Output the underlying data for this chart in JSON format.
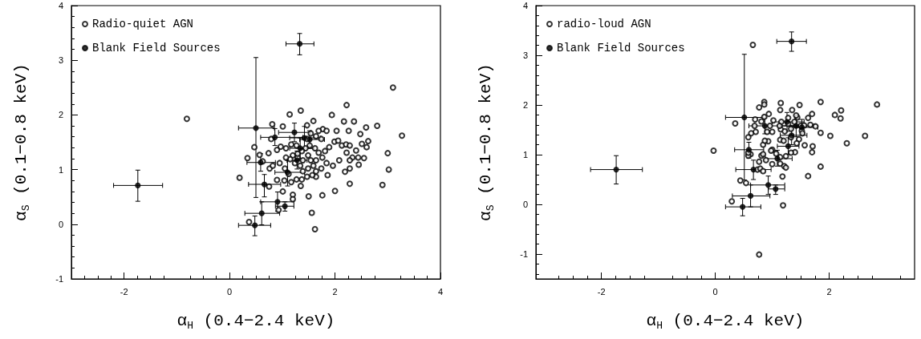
{
  "chart_data": [
    {
      "type": "scatter",
      "xlabel": "α$_{H}$ (0.4−2.4 keV)",
      "ylabel": "α$_{S}$ (0.1−0.8 keV)",
      "xlim": [
        -3,
        4
      ],
      "ylim": [
        -1,
        4
      ],
      "xticks": [
        -2,
        0,
        2,
        4
      ],
      "yticks": [
        -1,
        0,
        1,
        2,
        3,
        4
      ],
      "legend": "top left",
      "grid": false,
      "marker": "circle",
      "series": [
        {
          "name": "Radio-quiet AGN",
          "color": "#000000",
          "x": [
            -0.81,
            3.1,
            3.27,
            3.0,
            3.02,
            2.9,
            2.8,
            2.22,
            0.19,
            0.37,
            1.56,
            1.62,
            1.5,
            1.76,
            2.0,
            2.28,
            1.14,
            1.35,
            1.94,
            2.36,
            2.59,
            2.63,
            2.6,
            2.55,
            2.45,
            2.28,
            2.19,
            0.47,
            0.34,
            0.81,
            1.01,
            0.79,
            0.57,
            0.63,
            0.74,
            0.76,
            0.82,
            0.9,
            1.04,
            1.01,
            1.2,
            1.2,
            0.93,
            0.75,
            1.35,
            1.47,
            1.59,
            1.77,
            1.84,
            2.03,
            2.17,
            2.26,
            2.48,
            2.51,
            2.4,
            2.33,
            2.22,
            2.13,
            2.21,
            2.28,
            1.99,
            2.06,
            1.89,
            1.81,
            1.76,
            1.84,
            1.96,
            2.08,
            1.74,
            1.64,
            1.57,
            1.47,
            1.37,
            1.27,
            1.17,
            1.12,
            1.05,
            0.95,
            0.9,
            0.97,
            1.07,
            1.17,
            1.27,
            1.2,
            1.29,
            1.39,
            1.34,
            1.24,
            1.15,
            1.07,
            1.49,
            1.54,
            1.59,
            1.64,
            1.69,
            1.62,
            1.52,
            1.44,
            1.37,
            1.29,
            1.47,
            1.64,
            1.74,
            1.69,
            1.54,
            1.39,
            1.49,
            1.64,
            1.86,
            2.28,
            2.44
          ],
          "values": [
            1.93,
            2.5,
            1.62,
            1.3,
            1.0,
            0.72,
            1.8,
            2.18,
            0.85,
            0.04,
            0.21,
            -0.09,
            0.51,
            0.53,
            0.61,
            0.74,
            2.01,
            2.08,
            2.0,
            1.88,
            1.77,
            1.52,
            1.41,
            1.21,
            1.09,
            1.02,
            0.96,
            1.41,
            1.21,
            1.83,
            1.79,
            1.56,
            1.27,
            1.15,
            1.3,
            1.02,
            1.07,
            0.81,
            0.8,
            0.6,
            0.54,
            0.46,
            0.26,
            0.69,
            0.7,
            1.81,
            1.89,
            1.74,
            1.71,
            1.71,
            1.88,
            1.71,
            1.65,
            1.47,
            1.35,
            1.22,
            1.31,
            1.44,
            1.46,
            1.44,
            1.51,
            1.53,
            1.41,
            1.34,
            1.22,
            1.12,
            1.07,
            1.17,
            1.02,
            0.87,
            0.9,
            0.87,
            0.82,
            0.82,
            0.77,
            0.92,
            1.02,
            1.12,
            1.36,
            1.42,
            1.39,
            1.46,
            1.44,
            1.26,
            1.22,
            1.17,
            1.07,
            1.12,
            1.19,
            1.22,
            1.26,
            1.17,
            1.07,
            1.17,
            1.31,
            1.39,
            1.44,
            1.39,
            1.34,
            1.29,
            1.56,
            1.61,
            1.56,
            1.71,
            1.66,
            0.97,
            1.02,
            0.97,
            0.9,
            1.17,
            1.22
          ]
        },
        {
          "name": "Blank Field Sources",
          "color": "#000000",
          "x": [
            -1.74,
            1.33,
            0.5,
            0.59,
            0.66,
            0.91,
            1.05,
            0.61,
            0.48,
            0.86,
            1.1,
            1.23,
            1.28,
            1.34,
            1.42,
            1.52
          ],
          "values": [
            0.71,
            3.3,
            1.76,
            1.13,
            0.73,
            0.41,
            0.33,
            0.2,
            -0.02,
            1.59,
            0.95,
            1.68,
            1.17,
            1.39,
            1.58,
            1.55
          ],
          "errors": [
            [
              0.42,
              0.99
            ],
            [
              3.1,
              3.49
            ],
            [
              0.49,
              3.05
            ],
            [
              0.97,
              1.29
            ],
            [
              0.5,
              0.91
            ],
            [
              0.24,
              0.59
            ],
            [
              0.24,
              0.41
            ],
            [
              -0.01,
              0.41
            ],
            [
              -0.21,
              0.15
            ],
            [
              1.44,
              1.75
            ],
            [
              0.7,
              1.17
            ],
            [
              1.51,
              1.85
            ],
            [
              1.01,
              1.34
            ],
            [
              1.2,
              1.58
            ],
            [
              1.36,
              1.79
            ],
            [
              1.39,
              1.71
            ]
          ],
          "xerrors": [
            [
              -2.2,
              -1.27
            ],
            [
              1.07,
              1.6
            ],
            [
              0.17,
              0.85
            ],
            [
              0.33,
              0.87
            ],
            [
              0.36,
              0.97
            ],
            [
              0.59,
              1.22
            ],
            [
              0.87,
              1.22
            ],
            [
              0.29,
              0.95
            ],
            [
              0.17,
              0.78
            ],
            [
              0.59,
              1.39
            ],
            [
              0.86,
              1.42
            ],
            [
              0.93,
              1.54
            ],
            [
              1.09,
              1.47
            ],
            [
              1.14,
              1.61
            ],
            [
              1.14,
              1.73
            ],
            [
              1.33,
              1.8
            ]
          ]
        }
      ]
    },
    {
      "type": "scatter",
      "xlabel": "α$_{H}$ (0.4−2.4 keV)",
      "ylabel": "α$_{S}$ (0.1−0.8 keV)",
      "xlim": [
        -3.15,
        3.5
      ],
      "ylim": [
        -1.5,
        4
      ],
      "xticks": [
        -2,
        0,
        2
      ],
      "yticks": [
        -1,
        0,
        1,
        2,
        3,
        4
      ],
      "legend": "top left",
      "grid": false,
      "marker": "circle",
      "series": [
        {
          "name": "radio-loud AGN",
          "color": "#000000",
          "x": [
            -0.03,
            0.35,
            0.66,
            0.77,
            0.86,
            0.86,
            1.15,
            1.14,
            1.35,
            1.48,
            1.85,
            2.84,
            2.1,
            2.21,
            2.2,
            2.02,
            2.31,
            2.63,
            1.85,
            1.76,
            1.67,
            1.7,
            1.63,
            1.44,
            1.28,
            0.94,
            0.86,
            0.7,
            0.81,
            0.69,
            0.71,
            0.63,
            0.58,
            0.91,
            1.0,
            0.93,
            0.84,
            1.0,
            0.98,
            0.62,
            0.58,
            0.58,
            0.81,
            0.84,
            0.77,
            0.89,
            1.0,
            1.14,
            1.21,
            1.24,
            1.18,
            0.74,
            0.79,
            0.84,
            0.44,
            0.54,
            0.29,
            1.19,
            0.77,
            1.63,
            1.85,
            1.57,
            1.71,
            1.7,
            1.4,
            1.33,
            1.24,
            1.14,
            1.07,
            1.14,
            1.2,
            1.33,
            1.47,
            1.43,
            1.15,
            1.22,
            1.16,
            1.28,
            1.39,
            1.42,
            1.5,
            1.56,
            1.52,
            1.33,
            1.02,
            0.96,
            1.13,
            0.87,
            1.53
          ],
          "values": [
            1.08,
            1.63,
            3.21,
            1.95,
            2.06,
            2.01,
            2.04,
            1.9,
            1.9,
            2.0,
            2.06,
            2.01,
            1.8,
            1.89,
            1.73,
            1.38,
            1.23,
            1.38,
            1.44,
            1.57,
            1.6,
            1.82,
            1.74,
            1.75,
            1.74,
            1.82,
            1.76,
            1.71,
            1.67,
            1.58,
            1.46,
            1.43,
            1.35,
            1.46,
            1.46,
            1.27,
            1.2,
            1.1,
            1.08,
            1.01,
            0.98,
            1.04,
            0.98,
            1.01,
            0.86,
            0.89,
            0.81,
            0.82,
            0.77,
            0.74,
            0.56,
            0.7,
            0.72,
            0.67,
            0.48,
            0.43,
            0.06,
            -0.02,
            -1.01,
            0.57,
            0.76,
            1.19,
            1.17,
            1.05,
            1.05,
            1.04,
            0.97,
            0.95,
            1.02,
            1.3,
            1.28,
            1.35,
            1.31,
            1.23,
            1.51,
            1.47,
            1.66,
            1.62,
            1.66,
            1.79,
            1.58,
            1.59,
            1.48,
            1.52,
            1.69,
            1.58,
            1.58,
            1.28,
            1.43
          ]
        },
        {
          "name": "Blank Field Sources",
          "color": "#000000",
          "x": [
            -1.74,
            1.34,
            0.51,
            0.59,
            0.67,
            0.93,
            1.06,
            0.62,
            0.48,
            0.87,
            1.09,
            1.26,
            1.28,
            1.34,
            1.42,
            1.52
          ],
          "values": [
            0.7,
            3.28,
            1.75,
            1.1,
            0.7,
            0.39,
            0.31,
            0.17,
            -0.05,
            1.58,
            0.92,
            1.66,
            1.17,
            1.39,
            1.58,
            1.55
          ],
          "errors": [
            [
              0.41,
              0.98
            ],
            [
              3.08,
              3.47
            ],
            [
              0.49,
              3.02
            ],
            [
              0.93,
              1.25
            ],
            [
              0.5,
              0.89
            ],
            [
              0.2,
              0.57
            ],
            [
              0.2,
              0.39
            ],
            [
              -0.05,
              0.39
            ],
            [
              -0.23,
              0.12
            ],
            [
              1.42,
              1.74
            ],
            [
              0.77,
              1.09
            ],
            [
              1.47,
              1.85
            ],
            [
              1.01,
              1.34
            ],
            [
              1.2,
              1.58
            ],
            [
              1.36,
              1.79
            ],
            [
              1.39,
              1.71
            ]
          ],
          "xerrors": [
            [
              -2.19,
              -1.28
            ],
            [
              1.08,
              1.6
            ],
            [
              0.18,
              0.84
            ],
            [
              0.34,
              0.85
            ],
            [
              0.36,
              0.98
            ],
            [
              0.62,
              1.22
            ],
            [
              0.93,
              1.22
            ],
            [
              0.3,
              0.96
            ],
            [
              0.18,
              0.8
            ],
            [
              0.59,
              1.52
            ],
            [
              0.88,
              1.35
            ],
            [
              1.0,
              1.56
            ],
            [
              1.09,
              1.47
            ],
            [
              1.14,
              1.61
            ],
            [
              1.14,
              1.73
            ],
            [
              1.33,
              1.8
            ]
          ]
        }
      ]
    }
  ]
}
